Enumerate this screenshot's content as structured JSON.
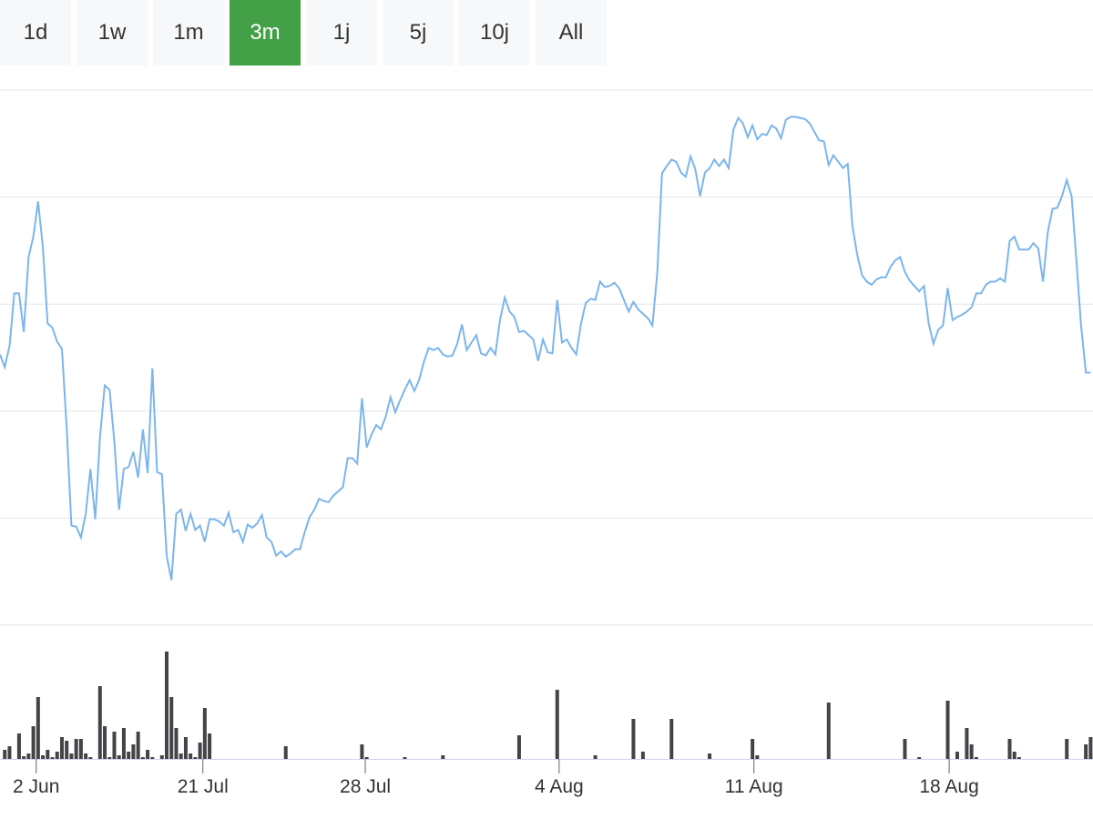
{
  "ranges": [
    "1d",
    "1w",
    "1m",
    "3m",
    "1j",
    "5j",
    "10j",
    "All"
  ],
  "active_range": 3,
  "chart_data": [
    {
      "type": "line",
      "color": "#7cb5ec",
      "grid": true,
      "xlim": [
        0,
        229.5
      ],
      "ylim": [
        0,
        50
      ],
      "yticks": [
        0,
        10,
        20,
        30,
        40,
        50
      ],
      "values": [
        25.3,
        24.1,
        26.1,
        31.0,
        31.0,
        27.4,
        34.4,
        36.3,
        39.6,
        35.3,
        28.2,
        27.8,
        26.5,
        25.8,
        18.5,
        9.3,
        9.2,
        8.2,
        10.4,
        14.6,
        9.9,
        17.6,
        22.4,
        22.0,
        17.2,
        10.8,
        14.6,
        14.8,
        16.2,
        13.8,
        18.3,
        14.2,
        24.0,
        14.3,
        14.1,
        6.5,
        4.2,
        10.4,
        10.8,
        8.8,
        10.4,
        8.9,
        9.3,
        7.8,
        9.9,
        9.9,
        9.7,
        9.3,
        10.5,
        8.7,
        8.9,
        7.8,
        9.4,
        9.1,
        9.5,
        10.3,
        8.2,
        7.8,
        6.5,
        6.9,
        6.4,
        6.7,
        7.1,
        7.1,
        8.7,
        10.1,
        10.8,
        11.8,
        11.6,
        11.5,
        12.1,
        12.5,
        12.9,
        15.6,
        15.6,
        15.1,
        21.2,
        16.6,
        17.8,
        18.7,
        18.3,
        19.5,
        21.3,
        19.9,
        21.0,
        22.0,
        22.9,
        21.9,
        22.9,
        24.6,
        25.9,
        25.7,
        25.9,
        25.3,
        25.1,
        25.2,
        26.3,
        28.1,
        25.7,
        26.4,
        27.1,
        25.4,
        25.2,
        25.9,
        25.3,
        28.5,
        30.6,
        29.3,
        28.8,
        27.4,
        27.5,
        27.1,
        26.7,
        24.7,
        26.7,
        25.5,
        25.4,
        30.4,
        26.4,
        26.7,
        25.9,
        25.3,
        28.2,
        30.1,
        30.5,
        30.4,
        32.1,
        31.6,
        31.7,
        32.0,
        31.5,
        30.4,
        29.3,
        30.2,
        29.5,
        29.1,
        28.7,
        28.0,
        32.9,
        42.2,
        42.9,
        43.5,
        43.3,
        42.3,
        41.9,
        43.8,
        42.6,
        40.1,
        42.3,
        42.7,
        43.5,
        42.9,
        43.5,
        42.7,
        46.3,
        47.4,
        46.9,
        45.6,
        46.7,
        45.4,
        45.9,
        45.8,
        46.7,
        46.4,
        45.5,
        47.2,
        47.5,
        47.5,
        47.4,
        47.3,
        46.9,
        46.1,
        45.3,
        45.2,
        43.0,
        43.9,
        43.3,
        42.7,
        43.1,
        37.3,
        34.6,
        32.7,
        32.1,
        31.8,
        32.3,
        32.5,
        32.5,
        33.5,
        34.1,
        34.4,
        33.0,
        32.2,
        31.7,
        31.2,
        31.7,
        28.2,
        26.3,
        27.6,
        28.0,
        31.5,
        28.5,
        28.8,
        29.0,
        29.3,
        29.7,
        31.0,
        31.0,
        31.8,
        32.1,
        32.1,
        32.4,
        32.1,
        35.9,
        36.3,
        35.1,
        35.1,
        35.1,
        35.7,
        35.2,
        32.1,
        36.7,
        38.9,
        39.0,
        40.1,
        41.6,
        40.1,
        34.2,
        28.0,
        23.6,
        23.6
      ]
    },
    {
      "type": "bar",
      "color": "#434348",
      "xlim": [
        0,
        229.5
      ],
      "ylim": [
        0,
        120
      ],
      "xticks": [
        {
          "value": 7.6,
          "label": "2 Jun"
        },
        {
          "value": 42.6,
          "label": "21 Jul"
        },
        {
          "value": 76.7,
          "label": "28 Jul"
        },
        {
          "value": 117.4,
          "label": "4 Aug"
        },
        {
          "value": 158.3,
          "label": "11 Aug"
        },
        {
          "value": 199.3,
          "label": "18 Aug"
        }
      ],
      "x": [
        1,
        2,
        4,
        5,
        6,
        7,
        8,
        9,
        10,
        11,
        12,
        13,
        14,
        15,
        16,
        17,
        18,
        19,
        21,
        22,
        23,
        24,
        25,
        26,
        27,
        28,
        29,
        30,
        31,
        32,
        34,
        35,
        36,
        37,
        38,
        39,
        40,
        41,
        42,
        43,
        44,
        60,
        76,
        77,
        85,
        93,
        109,
        117,
        125,
        133,
        135,
        141,
        149,
        158,
        159,
        174,
        190,
        193,
        199,
        201,
        203,
        204,
        205,
        212,
        213,
        214,
        224,
        228,
        229
      ],
      "values": [
        10,
        14,
        28,
        3,
        6,
        36,
        68,
        4,
        10,
        2,
        8,
        24,
        20,
        6,
        22,
        22,
        6,
        2,
        80,
        36,
        2,
        30,
        4,
        34,
        8,
        16,
        30,
        2,
        10,
        2,
        4,
        118,
        68,
        34,
        6,
        24,
        6,
        2,
        18,
        56,
        28,
        14,
        16,
        2,
        2,
        4,
        26,
        76,
        4,
        44,
        8,
        44,
        6,
        22,
        4,
        62,
        22,
        2,
        64,
        8,
        34,
        16,
        2,
        22,
        8,
        2,
        22,
        16,
        24
      ]
    }
  ]
}
